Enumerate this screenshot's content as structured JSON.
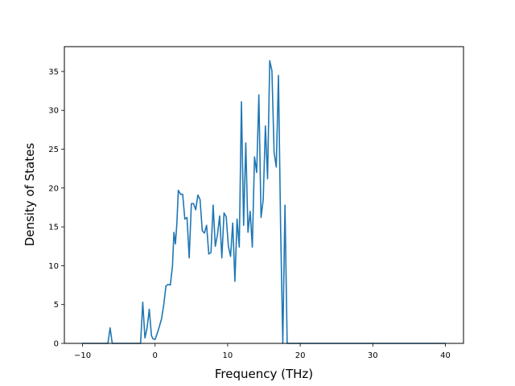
{
  "chart_data": {
    "type": "line",
    "title": "",
    "xlabel": "Frequency (THz)",
    "ylabel": "Density of States",
    "xlim": [
      -12.5,
      42.5
    ],
    "ylim": [
      0,
      38.2
    ],
    "xticks": [
      -10,
      0,
      10,
      20,
      30,
      40
    ],
    "yticks": [
      0,
      5,
      10,
      15,
      20,
      25,
      30,
      35
    ],
    "xtick_labels": [
      "−10",
      "0",
      "10",
      "20",
      "30",
      "40"
    ],
    "ytick_labels": [
      "0",
      "5",
      "10",
      "15",
      "20",
      "25",
      "30",
      "35"
    ],
    "grid": false,
    "line_color": "#1f77b4",
    "series": [
      {
        "x": [
          -10,
          -6.5,
          -6.2,
          -5.9,
          -5.6,
          -2.0,
          -1.7,
          -1.4,
          -1.1,
          -0.8,
          -0.5,
          -0.3,
          0.0,
          0.3,
          0.6,
          0.9,
          1.2,
          1.5,
          1.8,
          2.1,
          2.4,
          2.6,
          2.8,
          3.0,
          3.2,
          3.5,
          3.8,
          4.1,
          4.4,
          4.7,
          5.0,
          5.3,
          5.6,
          5.9,
          6.2,
          6.5,
          6.8,
          7.1,
          7.4,
          7.7,
          8.0,
          8.3,
          8.6,
          8.9,
          9.2,
          9.5,
          9.8,
          10.1,
          10.4,
          10.7,
          11.0,
          11.3,
          11.6,
          11.9,
          12.2,
          12.5,
          12.8,
          13.1,
          13.4,
          13.7,
          14.0,
          14.3,
          14.6,
          14.9,
          15.2,
          15.5,
          15.8,
          16.1,
          16.4,
          16.7,
          17.0,
          17.3,
          17.6,
          17.9,
          18.2,
          40
        ],
        "y": [
          0,
          0,
          2.0,
          0,
          0,
          0,
          5.3,
          0.7,
          2.0,
          4.4,
          1.0,
          0.6,
          0.5,
          1.3,
          2.2,
          3.2,
          5.0,
          7.4,
          7.6,
          7.5,
          10.0,
          14.3,
          12.8,
          15.4,
          19.7,
          19.2,
          19.2,
          16.0,
          16.2,
          11.0,
          18.0,
          18.0,
          17.2,
          19.1,
          18.5,
          14.5,
          14.2,
          15.2,
          11.5,
          11.7,
          17.8,
          12.5,
          14.0,
          16.4,
          11.0,
          16.8,
          16.3,
          12.5,
          11.2,
          15.5,
          8.0,
          16.0,
          12.4,
          31.1,
          15.2,
          25.8,
          14.3,
          17.0,
          12.4,
          24.0,
          22.0,
          32.0,
          16.2,
          18.5,
          28.0,
          21.2,
          36.4,
          35.1,
          24.6,
          22.7,
          34.5,
          14.8,
          0,
          17.8,
          0,
          0
        ]
      }
    ]
  }
}
